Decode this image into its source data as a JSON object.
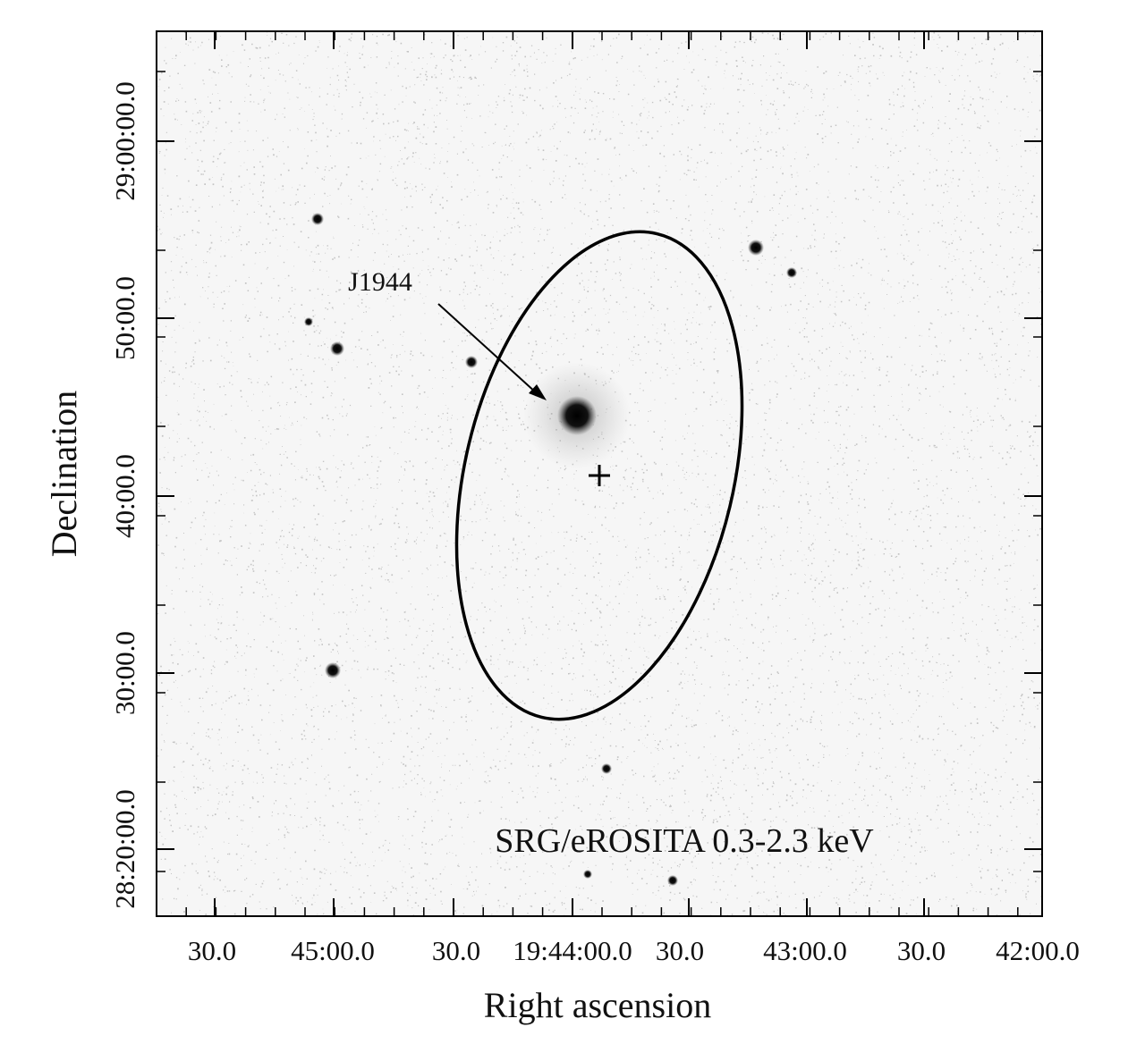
{
  "figure": {
    "x_axis": {
      "label": "Right ascension",
      "ticks": [
        "30.0",
        "45:00.0",
        "30.0",
        "19:44:00.0",
        "30.0",
        "43:00.0",
        "30.0",
        "42:00.0"
      ]
    },
    "y_axis": {
      "label": "Declination",
      "ticks": [
        "29:00:00.0",
        "50:00.0",
        "40:00.0",
        "30:00.0",
        "28:20:00.0"
      ]
    },
    "source_label": "J1944",
    "band_label": "SRG/eROSITA 0.3-2.3 keV"
  }
}
